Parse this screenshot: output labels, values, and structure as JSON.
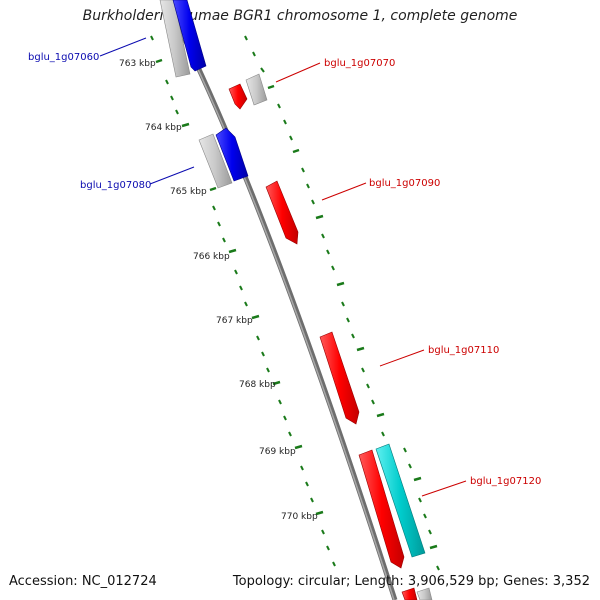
{
  "title": "Burkholderia glumae BGR1 chromosome 1, complete genome",
  "footer": {
    "accession": "Accession: NC_012724",
    "summary": "Topology: circular; Length: 3,906,529 bp; Genes: 3,352"
  },
  "ticks": [
    {
      "label": "763 kbp"
    },
    {
      "label": "764 kbp"
    },
    {
      "label": "765 kbp"
    },
    {
      "label": "766 kbp"
    },
    {
      "label": "767 kbp"
    },
    {
      "label": "768 kbp"
    },
    {
      "label": "769 kbp"
    },
    {
      "label": "770 kbp"
    }
  ],
  "genes": [
    {
      "label": "bglu_1g07060",
      "color": "#0b0bb0"
    },
    {
      "label": "bglu_1g07070",
      "color": "#cc0000"
    },
    {
      "label": "bglu_1g07080",
      "color": "#0b0bb0"
    },
    {
      "label": "bglu_1g07090",
      "color": "#cc0000"
    },
    {
      "label": "bglu_1g07110",
      "color": "#cc0000"
    },
    {
      "label": "bglu_1g07120",
      "color": "#cc0000"
    }
  ],
  "colors": {
    "backbone": "#808080",
    "tick": "#1a7a1a",
    "forward_cds": "#ff0000",
    "reverse_cds": "#0000ee",
    "rna": "#00cccc",
    "gene": "#c8c8c8"
  }
}
